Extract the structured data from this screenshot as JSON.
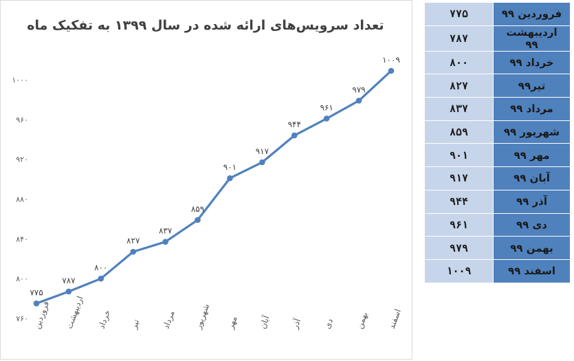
{
  "chart_data": {
    "type": "line",
    "title": "تعداد سرویس‌های ارائه شده در سال ۱۳۹۹ به تفکیک ماه",
    "xlabel": "",
    "ylabel": "",
    "categories": [
      "فروردین",
      "اردیبهشت",
      "خرداد",
      "تیر",
      "مرداد",
      "شهریور",
      "مهر",
      "آبان",
      "آذر",
      "دی",
      "بهمن",
      "اسفند"
    ],
    "values": [
      775,
      787,
      800,
      827,
      837,
      859,
      901,
      917,
      944,
      961,
      979,
      1009
    ],
    "value_labels": [
      "۷۷۵",
      "۷۸۷",
      "۸۰۰",
      "۸۲۷",
      "۸۳۷",
      "۸۵۹",
      "۹۰۱",
      "۹۱۷",
      "۹۴۴",
      "۹۶۱",
      "۹۷۹",
      "۱۰۰۹"
    ],
    "ylim": [
      760,
      1000
    ],
    "yticks": [
      760,
      800,
      840,
      880,
      920,
      960,
      1000
    ],
    "ytick_labels": [
      "۷۶۰",
      "۸۰۰",
      "۸۴۰",
      "۸۸۰",
      "۹۲۰",
      "۹۶۰",
      "۱۰۰۰"
    ],
    "grid": false,
    "line_color": "#4f81bd"
  },
  "table": {
    "rows": [
      {
        "month": "فروردین ۹۹",
        "value": "۷۷۵"
      },
      {
        "month": "اردیبهشت ۹۹",
        "value": "۷۸۷"
      },
      {
        "month": "خرداد ۹۹",
        "value": "۸۰۰"
      },
      {
        "month": "تیر۹۹",
        "value": "۸۲۷"
      },
      {
        "month": "مرداد ۹۹",
        "value": "۸۳۷"
      },
      {
        "month": "شهریور ۹۹",
        "value": "۸۵۹"
      },
      {
        "month": "مهر ۹۹",
        "value": "۹۰۱"
      },
      {
        "month": "آبان ۹۹",
        "value": "۹۱۷"
      },
      {
        "month": "آذر ۹۹",
        "value": "۹۴۴"
      },
      {
        "month": "دی ۹۹",
        "value": "۹۶۱"
      },
      {
        "month": "بهمن ۹۹",
        "value": "۹۷۹"
      },
      {
        "month": "اسفند ۹۹",
        "value": "۱۰۰۹"
      }
    ],
    "month_color": "#4f81bd",
    "value_color": "#c6d5ea"
  }
}
